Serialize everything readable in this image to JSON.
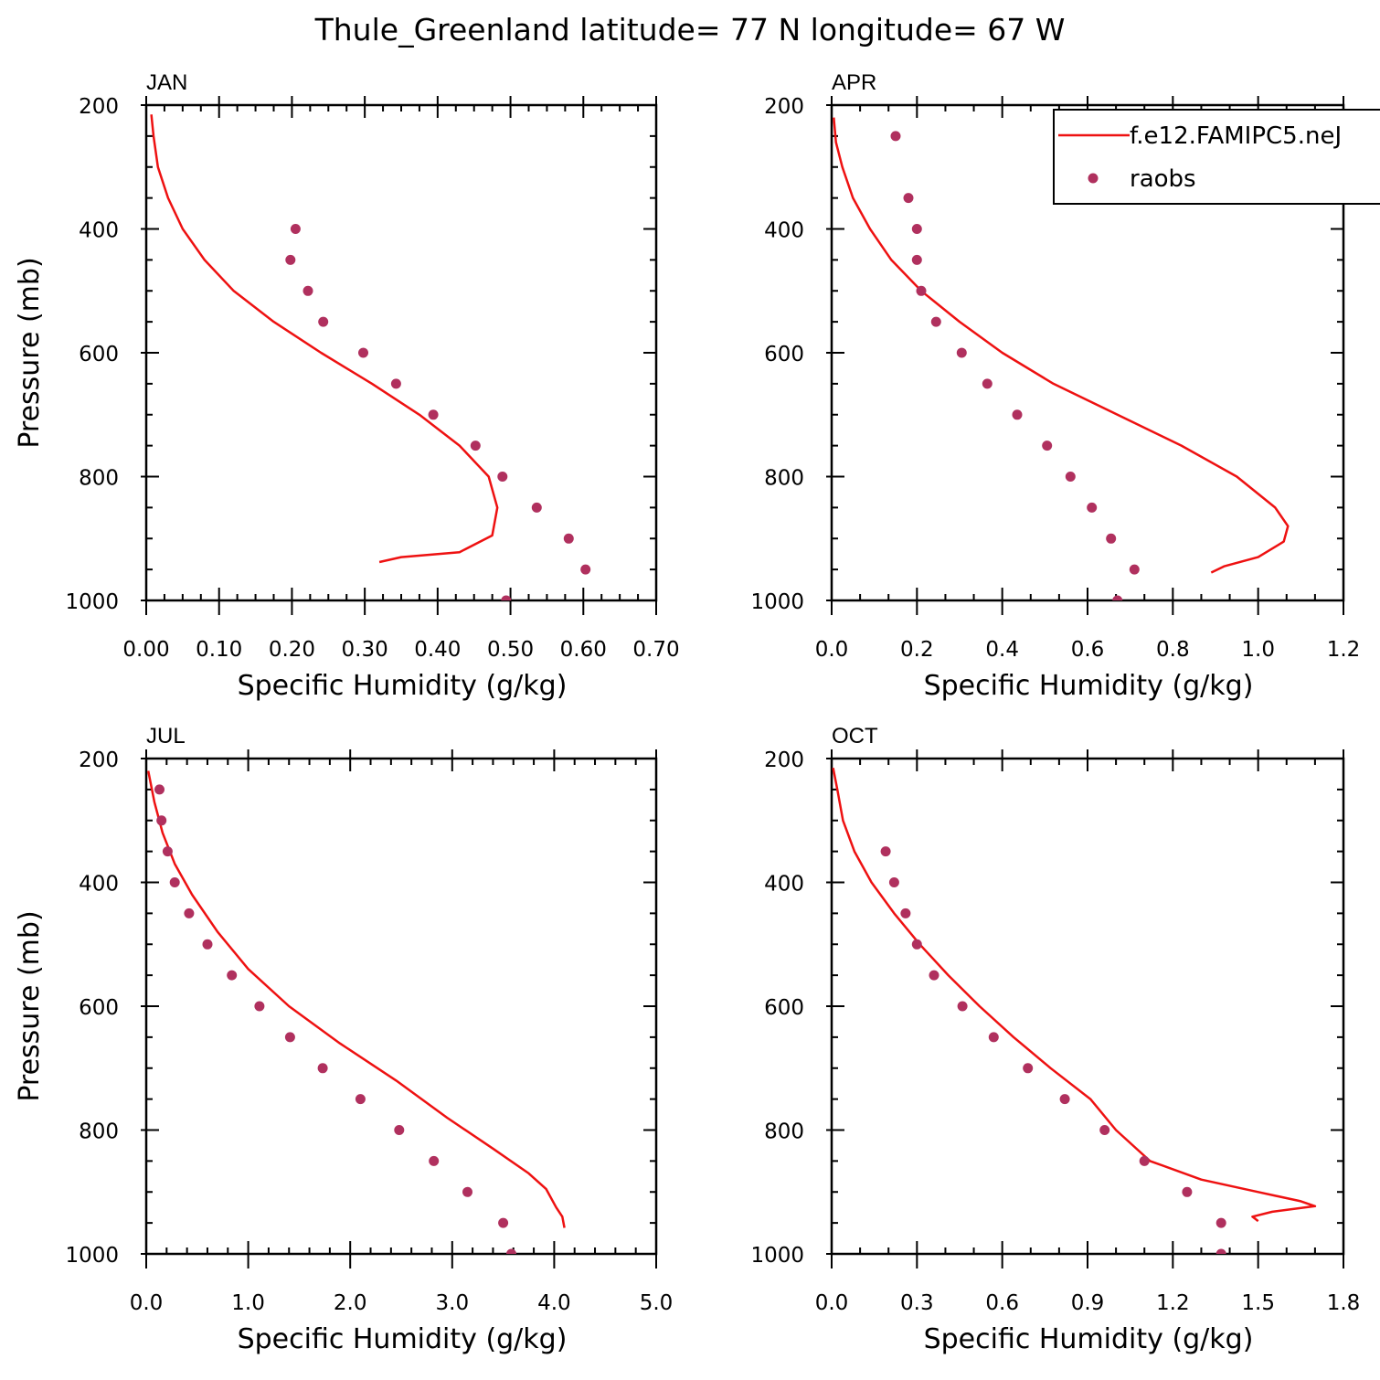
{
  "figure": {
    "title": "Thule_Greenland  latitude= 77 N longitude= 67 W"
  },
  "legend": {
    "model_label": "f.e12.FAMIPC5.neJ",
    "obs_label": "raobs"
  },
  "colors": {
    "model_line": "#ee1111",
    "obs_marker": "#b0305e",
    "axes": "#000000"
  },
  "chart_data": [
    {
      "type": "line",
      "panel": "JAN",
      "title": "JAN",
      "xlabel": "Specific Humidity (g/kg)",
      "ylabel": "Pressure (mb)",
      "xlim": [
        0,
        0.7
      ],
      "ylim": [
        200,
        1000
      ],
      "y_inverted": true,
      "xticks": [
        "0.00",
        "0.10",
        "0.20",
        "0.30",
        "0.40",
        "0.50",
        "0.60",
        "0.70"
      ],
      "yticks": [
        "200",
        "400",
        "600",
        "800",
        "1000"
      ],
      "legend_position": "none",
      "series": [
        {
          "name": "f.e12.FAMIPC5.neJ",
          "kind": "line",
          "points": [
            [
              0.007,
              215
            ],
            [
              0.01,
              250
            ],
            [
              0.016,
              300
            ],
            [
              0.03,
              350
            ],
            [
              0.05,
              400
            ],
            [
              0.08,
              450
            ],
            [
              0.12,
              500
            ],
            [
              0.175,
              550
            ],
            [
              0.24,
              600
            ],
            [
              0.31,
              650
            ],
            [
              0.375,
              700
            ],
            [
              0.43,
              750
            ],
            [
              0.47,
              800
            ],
            [
              0.482,
              850
            ],
            [
              0.475,
              895
            ],
            [
              0.43,
              922
            ],
            [
              0.35,
              930
            ],
            [
              0.32,
              938
            ]
          ]
        },
        {
          "name": "raobs",
          "kind": "scatter",
          "points": [
            [
              0.205,
              400
            ],
            [
              0.198,
              450
            ],
            [
              0.222,
              500
            ],
            [
              0.243,
              550
            ],
            [
              0.298,
              600
            ],
            [
              0.343,
              650
            ],
            [
              0.394,
              700
            ],
            [
              0.452,
              750
            ],
            [
              0.489,
              800
            ],
            [
              0.536,
              850
            ],
            [
              0.58,
              900
            ],
            [
              0.603,
              950
            ],
            [
              0.494,
              1000
            ]
          ]
        }
      ]
    },
    {
      "type": "line",
      "panel": "APR",
      "title": "APR",
      "xlabel": "Specific Humidity (g/kg)",
      "ylabel": "",
      "xlim": [
        0,
        1.2
      ],
      "ylim": [
        200,
        1000
      ],
      "y_inverted": true,
      "xticks": [
        "0.0",
        "0.2",
        "0.4",
        "0.6",
        "0.8",
        "1.0",
        "1.2"
      ],
      "yticks": [
        "200",
        "400",
        "600",
        "800",
        "1000"
      ],
      "legend_position": "top-right",
      "series": [
        {
          "name": "f.e12.FAMIPC5.neJ",
          "kind": "line",
          "points": [
            [
              0.005,
              220
            ],
            [
              0.01,
              260
            ],
            [
              0.025,
              300
            ],
            [
              0.05,
              350
            ],
            [
              0.09,
              400
            ],
            [
              0.14,
              450
            ],
            [
              0.21,
              500
            ],
            [
              0.3,
              550
            ],
            [
              0.4,
              600
            ],
            [
              0.52,
              650
            ],
            [
              0.67,
              700
            ],
            [
              0.82,
              750
            ],
            [
              0.95,
              800
            ],
            [
              1.04,
              850
            ],
            [
              1.07,
              880
            ],
            [
              1.06,
              905
            ],
            [
              1.0,
              930
            ],
            [
              0.92,
              945
            ],
            [
              0.89,
              955
            ]
          ]
        },
        {
          "name": "raobs",
          "kind": "scatter",
          "points": [
            [
              0.15,
              250
            ],
            [
              0.18,
              350
            ],
            [
              0.2,
              400
            ],
            [
              0.2,
              450
            ],
            [
              0.21,
              500
            ],
            [
              0.245,
              550
            ],
            [
              0.305,
              600
            ],
            [
              0.365,
              650
            ],
            [
              0.435,
              700
            ],
            [
              0.505,
              750
            ],
            [
              0.56,
              800
            ],
            [
              0.61,
              850
            ],
            [
              0.655,
              900
            ],
            [
              0.71,
              950
            ],
            [
              0.67,
              1000
            ]
          ]
        }
      ]
    },
    {
      "type": "line",
      "panel": "JUL",
      "title": "JUL",
      "xlabel": "Specific Humidity (g/kg)",
      "ylabel": "Pressure (mb)",
      "xlim": [
        0,
        5
      ],
      "ylim": [
        200,
        1000
      ],
      "y_inverted": true,
      "xticks": [
        "0.0",
        "1.0",
        "2.0",
        "3.0",
        "4.0",
        "5.0"
      ],
      "yticks": [
        "200",
        "400",
        "600",
        "800",
        "1000"
      ],
      "legend_position": "none",
      "series": [
        {
          "name": "f.e12.FAMIPC5.neJ",
          "kind": "line",
          "points": [
            [
              0.02,
              220
            ],
            [
              0.08,
              270
            ],
            [
              0.16,
              320
            ],
            [
              0.28,
              370
            ],
            [
              0.45,
              420
            ],
            [
              0.7,
              480
            ],
            [
              1.0,
              540
            ],
            [
              1.4,
              600
            ],
            [
              1.9,
              660
            ],
            [
              2.45,
              720
            ],
            [
              2.95,
              780
            ],
            [
              3.4,
              830
            ],
            [
              3.75,
              870
            ],
            [
              3.92,
              895
            ],
            [
              4.02,
              925
            ],
            [
              4.08,
              940
            ],
            [
              4.1,
              958
            ]
          ]
        },
        {
          "name": "raobs",
          "kind": "scatter",
          "points": [
            [
              0.13,
              250
            ],
            [
              0.15,
              300
            ],
            [
              0.21,
              350
            ],
            [
              0.28,
              400
            ],
            [
              0.42,
              450
            ],
            [
              0.6,
              500
            ],
            [
              0.84,
              550
            ],
            [
              1.11,
              600
            ],
            [
              1.41,
              650
            ],
            [
              1.73,
              700
            ],
            [
              2.1,
              750
            ],
            [
              2.48,
              800
            ],
            [
              2.82,
              850
            ],
            [
              3.15,
              900
            ],
            [
              3.5,
              950
            ],
            [
              3.58,
              1000
            ]
          ]
        }
      ]
    },
    {
      "type": "line",
      "panel": "OCT",
      "title": "OCT",
      "xlabel": "Specific Humidity (g/kg)",
      "ylabel": "",
      "xlim": [
        0,
        1.8
      ],
      "ylim": [
        200,
        1000
      ],
      "y_inverted": true,
      "xticks": [
        "0.0",
        "0.3",
        "0.6",
        "0.9",
        "1.2",
        "1.5",
        "1.8"
      ],
      "yticks": [
        "200",
        "400",
        "600",
        "800",
        "1000"
      ],
      "legend_position": "none",
      "series": [
        {
          "name": "f.e12.FAMIPC5.neJ",
          "kind": "line",
          "points": [
            [
              0.005,
              215
            ],
            [
              0.02,
              250
            ],
            [
              0.04,
              300
            ],
            [
              0.08,
              350
            ],
            [
              0.14,
              400
            ],
            [
              0.22,
              450
            ],
            [
              0.31,
              500
            ],
            [
              0.41,
              550
            ],
            [
              0.52,
              600
            ],
            [
              0.64,
              650
            ],
            [
              0.77,
              700
            ],
            [
              0.91,
              750
            ],
            [
              1.0,
              800
            ],
            [
              1.12,
              850
            ],
            [
              1.3,
              880
            ],
            [
              1.5,
              900
            ],
            [
              1.65,
              915
            ],
            [
              1.7,
              923
            ],
            [
              1.55,
              932
            ],
            [
              1.48,
              940
            ],
            [
              1.5,
              947
            ]
          ]
        },
        {
          "name": "raobs",
          "kind": "scatter",
          "points": [
            [
              0.19,
              350
            ],
            [
              0.22,
              400
            ],
            [
              0.26,
              450
            ],
            [
              0.3,
              500
            ],
            [
              0.36,
              550
            ],
            [
              0.46,
              600
            ],
            [
              0.57,
              650
            ],
            [
              0.69,
              700
            ],
            [
              0.82,
              750
            ],
            [
              0.96,
              800
            ],
            [
              1.1,
              850
            ],
            [
              1.25,
              900
            ],
            [
              1.37,
              950
            ],
            [
              1.37,
              1000
            ]
          ]
        }
      ]
    }
  ]
}
